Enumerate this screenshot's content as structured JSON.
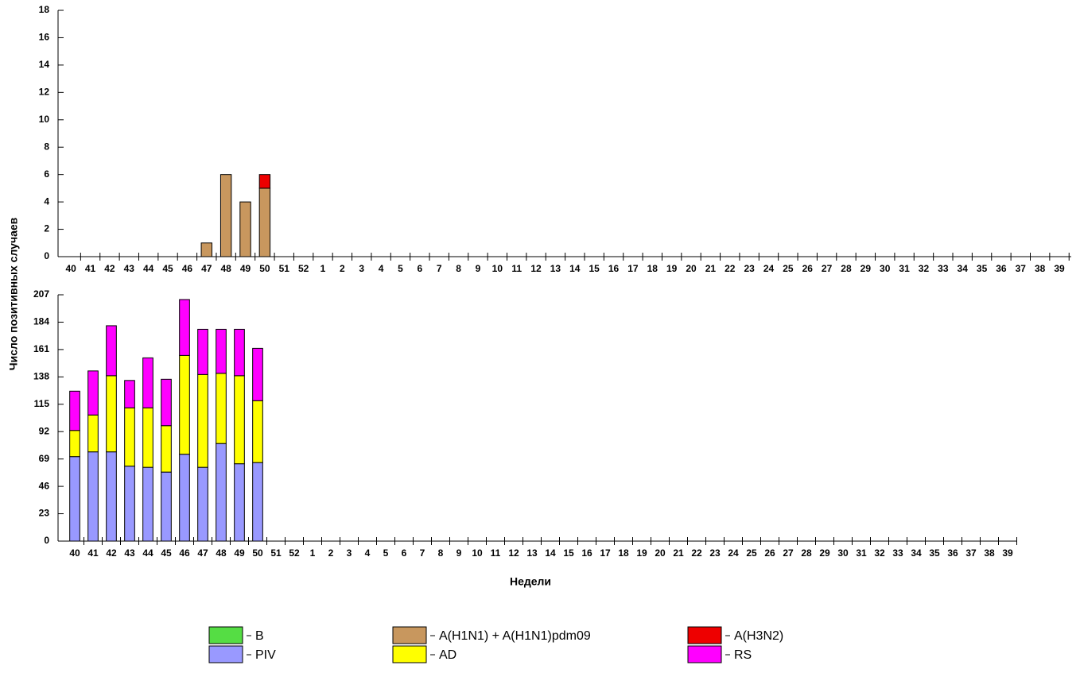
{
  "chart_data": [
    {
      "type": "bar",
      "stacked": true,
      "ylabel": "Число позитивных случаев",
      "categories": [
        "40",
        "41",
        "42",
        "43",
        "44",
        "45",
        "46",
        "47",
        "48",
        "49",
        "50",
        "51",
        "52",
        "1",
        "2",
        "3",
        "4",
        "5",
        "6",
        "7",
        "8",
        "9",
        "10",
        "11",
        "12",
        "13",
        "14",
        "15",
        "16",
        "17",
        "18",
        "19",
        "20",
        "21",
        "22",
        "23",
        "24",
        "25",
        "26",
        "27",
        "28",
        "29",
        "30",
        "31",
        "32",
        "33",
        "34",
        "35",
        "36",
        "37",
        "38",
        "39"
      ],
      "ylim": [
        0,
        18
      ],
      "yticks": [
        0,
        2,
        4,
        6,
        8,
        10,
        12,
        14,
        16,
        18
      ],
      "series": [
        {
          "name": "B",
          "color": "#55dd44",
          "values": [
            0,
            0,
            0,
            0,
            0,
            0,
            0,
            0,
            0,
            0,
            0,
            null,
            null,
            null,
            null,
            null,
            null,
            null,
            null,
            null,
            null,
            null,
            null,
            null,
            null,
            null,
            null,
            null,
            null,
            null,
            null,
            null,
            null,
            null,
            null,
            null,
            null,
            null,
            null,
            null,
            null,
            null,
            null,
            null,
            null,
            null,
            null,
            null,
            null,
            null,
            null,
            null
          ]
        },
        {
          "name": "A(H1N1) + A(H1N1)pdm09",
          "color": "#c8975e",
          "values": [
            0,
            0,
            0,
            0,
            0,
            0,
            0,
            1,
            6,
            4,
            5,
            null,
            null,
            null,
            null,
            null,
            null,
            null,
            null,
            null,
            null,
            null,
            null,
            null,
            null,
            null,
            null,
            null,
            null,
            null,
            null,
            null,
            null,
            null,
            null,
            null,
            null,
            null,
            null,
            null,
            null,
            null,
            null,
            null,
            null,
            null,
            null,
            null,
            null,
            null,
            null,
            null
          ]
        },
        {
          "name": "A(H3N2)",
          "color": "#ee0000",
          "values": [
            0,
            0,
            0,
            0,
            0,
            0,
            0,
            0,
            0,
            0,
            1,
            null,
            null,
            null,
            null,
            null,
            null,
            null,
            null,
            null,
            null,
            null,
            null,
            null,
            null,
            null,
            null,
            null,
            null,
            null,
            null,
            null,
            null,
            null,
            null,
            null,
            null,
            null,
            null,
            null,
            null,
            null,
            null,
            null,
            null,
            null,
            null,
            null,
            null,
            null,
            null,
            null
          ]
        }
      ]
    },
    {
      "type": "bar",
      "stacked": true,
      "xlabel": "Недели",
      "categories": [
        "40",
        "41",
        "42",
        "43",
        "44",
        "45",
        "46",
        "47",
        "48",
        "49",
        "50",
        "51",
        "52",
        "1",
        "2",
        "3",
        "4",
        "5",
        "6",
        "7",
        "8",
        "9",
        "10",
        "11",
        "12",
        "13",
        "14",
        "15",
        "16",
        "17",
        "18",
        "19",
        "20",
        "21",
        "22",
        "23",
        "24",
        "25",
        "26",
        "27",
        "28",
        "29",
        "30",
        "31",
        "32",
        "33",
        "34",
        "35",
        "36",
        "37",
        "38",
        "39"
      ],
      "ylim": [
        0,
        207
      ],
      "yticks": [
        0,
        23,
        46,
        69,
        92,
        115,
        138,
        161,
        184,
        207
      ],
      "series": [
        {
          "name": "PIV",
          "color": "#9999ff",
          "values": [
            71,
            75,
            75,
            63,
            62,
            58,
            73,
            62,
            82,
            65,
            66,
            null,
            null,
            null,
            null,
            null,
            null,
            null,
            null,
            null,
            null,
            null,
            null,
            null,
            null,
            null,
            null,
            null,
            null,
            null,
            null,
            null,
            null,
            null,
            null,
            null,
            null,
            null,
            null,
            null,
            null,
            null,
            null,
            null,
            null,
            null,
            null,
            null,
            null,
            null,
            null,
            null
          ]
        },
        {
          "name": "AD",
          "color": "#ffff00",
          "values": [
            22,
            31,
            64,
            49,
            50,
            39,
            83,
            78,
            59,
            74,
            52,
            null,
            null,
            null,
            null,
            null,
            null,
            null,
            null,
            null,
            null,
            null,
            null,
            null,
            null,
            null,
            null,
            null,
            null,
            null,
            null,
            null,
            null,
            null,
            null,
            null,
            null,
            null,
            null,
            null,
            null,
            null,
            null,
            null,
            null,
            null,
            null,
            null,
            null,
            null,
            null,
            null
          ]
        },
        {
          "name": "RS",
          "color": "#ff00ff",
          "values": [
            33,
            37,
            42,
            23,
            42,
            39,
            47,
            38,
            37,
            39,
            44,
            null,
            null,
            null,
            null,
            null,
            null,
            null,
            null,
            null,
            null,
            null,
            null,
            null,
            null,
            null,
            null,
            null,
            null,
            null,
            null,
            null,
            null,
            null,
            null,
            null,
            null,
            null,
            null,
            null,
            null,
            null,
            null,
            null,
            null,
            null,
            null,
            null,
            null,
            null,
            null,
            null
          ]
        }
      ]
    }
  ]
}
